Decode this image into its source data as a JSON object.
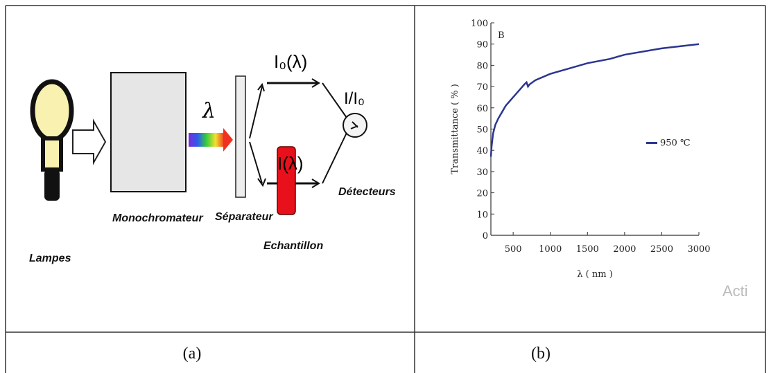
{
  "diagram": {
    "lamp": "Lampes",
    "monochromator": "Monochromateur",
    "wavelength": "λ",
    "separator": "Séparateur",
    "reference_beam": "I₀(λ)",
    "sample_beam": "I(λ)",
    "sample": "Echantillon",
    "ratio": "I/I₀",
    "detectors": "Détecteurs"
  },
  "captions": [
    "(a)",
    "(b)"
  ],
  "watermark": "Acti",
  "chart_data": {
    "type": "line",
    "panel_label": "B",
    "x_label": "λ ( nm )",
    "y_label": "Transmittance ( % )",
    "x": [
      200,
      210,
      230,
      260,
      300,
      350,
      400,
      450,
      500,
      550,
      600,
      650,
      680,
      700,
      720,
      800,
      1000,
      1200,
      1500,
      1800,
      2000,
      2500,
      3000
    ],
    "series": [
      {
        "name": "950 ℃",
        "color": "#2b3590",
        "values": [
          37,
          42,
          48,
          52,
          55,
          58,
          61,
          63,
          65,
          67,
          69,
          71,
          72,
          70,
          71,
          73,
          76,
          78,
          81,
          83,
          85,
          88,
          90
        ]
      }
    ],
    "xlim": [
      200,
      3000
    ],
    "ylim": [
      0,
      100
    ],
    "xticks": [
      500,
      1000,
      1500,
      2000,
      2500,
      3000
    ],
    "yticks": [
      0,
      10,
      20,
      30,
      40,
      50,
      60,
      70,
      80,
      90,
      100
    ],
    "legend": "right"
  }
}
